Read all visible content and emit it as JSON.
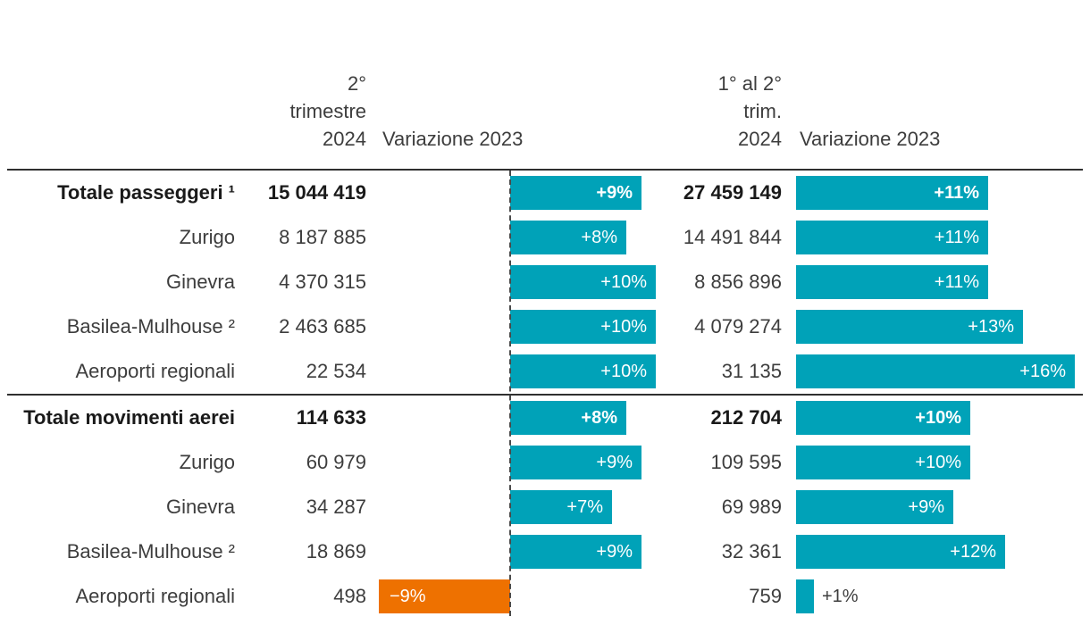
{
  "figure": {
    "language": "it",
    "description_headers": {
      "q2_lines": [
        "2°",
        "trimestre",
        "2024"
      ],
      "q2_var": "Variazione 2023",
      "h1_lines": [
        "1° al 2°",
        "trim.",
        "2024"
      ],
      "h1_var": "Variazione 2023"
    }
  },
  "colors": {
    "positive_bar": "#00a2b8",
    "negative_bar": "#ee7100",
    "bar_label_inside": "#ffffff",
    "bar_label_outside": "#3d3d3d",
    "text_normal": "#3d3d3d",
    "text_bold": "#1a1a1a",
    "rule": "#2f2f2f",
    "axis_dashed": "#4a4a4a"
  },
  "table": {
    "rows": [
      {
        "label": "Totale passeggeri ¹",
        "bold": true,
        "q2": "15 044 419",
        "q2_var_pct": 9,
        "q2_var_label": "+9%",
        "h1": "27 459 149",
        "h1_var_pct": 11,
        "h1_var_label": "+11%"
      },
      {
        "label": "Zurigo",
        "bold": false,
        "q2": "8 187 885",
        "q2_var_pct": 8,
        "q2_var_label": "+8%",
        "h1": "14 491 844",
        "h1_var_pct": 11,
        "h1_var_label": "+11%"
      },
      {
        "label": "Ginevra",
        "bold": false,
        "q2": "4 370 315",
        "q2_var_pct": 10,
        "q2_var_label": "+10%",
        "h1": "8 856 896",
        "h1_var_pct": 11,
        "h1_var_label": "+11%"
      },
      {
        "label": "Basilea-Mulhouse ²",
        "bold": false,
        "q2": "2 463 685",
        "q2_var_pct": 10,
        "q2_var_label": "+10%",
        "h1": "4 079 274",
        "h1_var_pct": 13,
        "h1_var_label": "+13%"
      },
      {
        "label": "Aeroporti regionali",
        "bold": false,
        "q2": "22 534",
        "q2_var_pct": 10,
        "q2_var_label": "+10%",
        "h1": "31 135",
        "h1_var_pct": 16,
        "h1_var_label": "+16%"
      },
      {
        "label": "Totale movimenti aerei",
        "bold": true,
        "q2": "114 633",
        "q2_var_pct": 8,
        "q2_var_label": "+8%",
        "h1": "212 704",
        "h1_var_pct": 10,
        "h1_var_label": "+10%"
      },
      {
        "label": "Zurigo",
        "bold": false,
        "q2": "60 979",
        "q2_var_pct": 9,
        "q2_var_label": "+9%",
        "h1": "109 595",
        "h1_var_pct": 10,
        "h1_var_label": "+10%"
      },
      {
        "label": "Ginevra",
        "bold": false,
        "q2": "34 287",
        "q2_var_pct": 7,
        "q2_var_label": "+7%",
        "h1": "69 989",
        "h1_var_pct": 9,
        "h1_var_label": "+9%"
      },
      {
        "label": "Basilea-Mulhouse ²",
        "bold": false,
        "q2": "18 869",
        "q2_var_pct": 9,
        "q2_var_label": "+9%",
        "h1": "32 361",
        "h1_var_pct": 12,
        "h1_var_label": "+12%"
      },
      {
        "label": "Aeroporti regionali",
        "bold": false,
        "q2": "498",
        "q2_var_pct": -9,
        "q2_var_label": "−9%",
        "h1": "759",
        "h1_var_pct": 1,
        "h1_var_label": "+1%"
      }
    ],
    "group_break_after_index": 4
  },
  "chart_data": {
    "type": "bar",
    "orientation": "horizontal",
    "categories": [
      "Totale passeggeri ¹",
      "Zurigo",
      "Ginevra",
      "Basilea-Mulhouse ²",
      "Aeroporti regionali",
      "Totale movimenti aerei",
      "Zurigo",
      "Ginevra",
      "Basilea-Mulhouse ²",
      "Aeroporti regionali"
    ],
    "series": [
      {
        "name": "2° trimestre 2024",
        "kind": "value_column",
        "values": [
          15044419,
          8187885,
          4370315,
          2463685,
          22534,
          114633,
          60979,
          34287,
          18869,
          498
        ]
      },
      {
        "name": "Variazione 2023 (2° trimestre)",
        "kind": "bar_percent",
        "values": [
          9,
          8,
          10,
          10,
          10,
          8,
          9,
          7,
          9,
          -9
        ]
      },
      {
        "name": "1° al 2° trim. 2024",
        "kind": "value_column",
        "values": [
          27459149,
          14491844,
          8856896,
          4079274,
          31135,
          212704,
          109595,
          69989,
          32361,
          759
        ]
      },
      {
        "name": "Variazione 2023 (1° al 2° trim.)",
        "kind": "bar_percent",
        "values": [
          11,
          11,
          11,
          13,
          16,
          10,
          10,
          9,
          12,
          1
        ]
      }
    ],
    "legend": "none",
    "grid": "off",
    "notes": "negative values shown in orange extending left of dashed zero axis; labels printed inside bars"
  }
}
